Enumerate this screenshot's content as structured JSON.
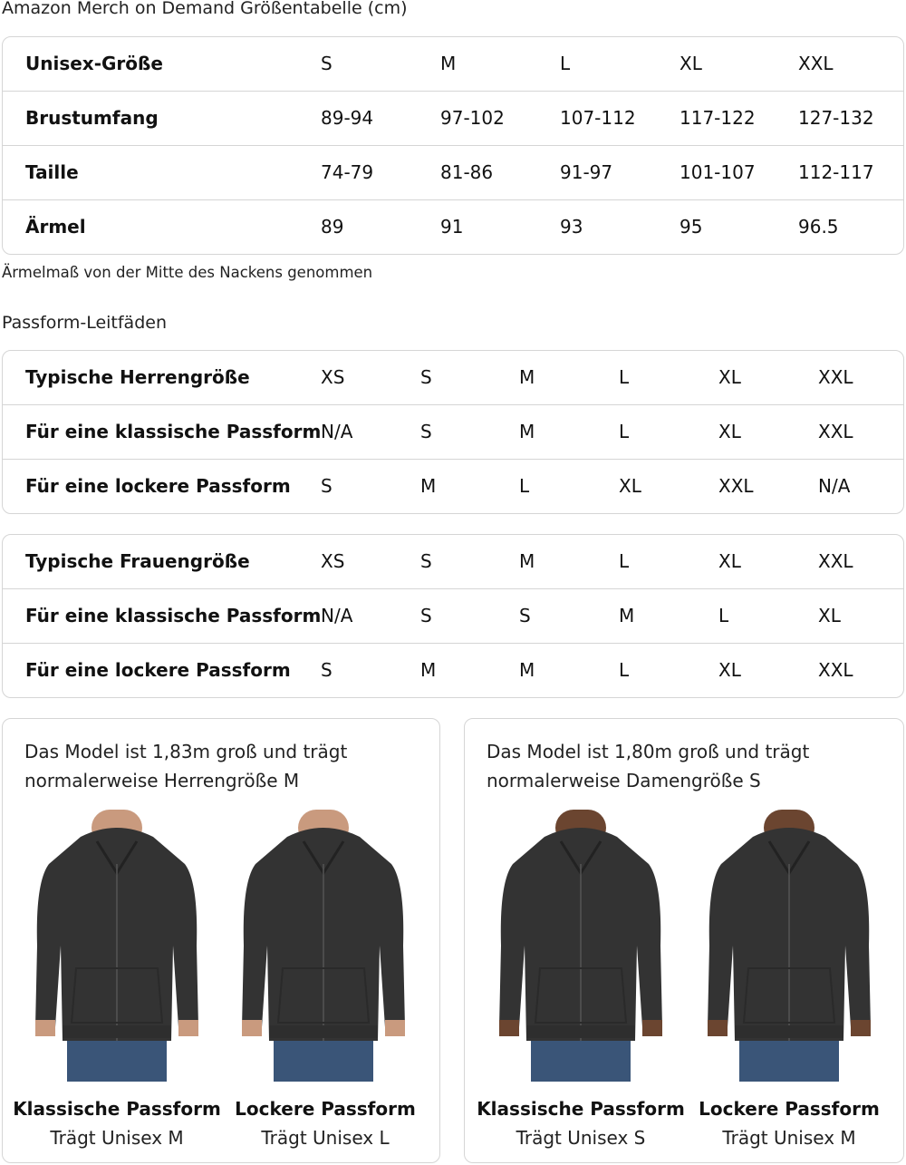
{
  "title": "Amazon Merch on Demand Größentabelle (cm)",
  "unisex_table": {
    "rows": [
      {
        "label": "Unisex-Größe",
        "values": [
          "S",
          "M",
          "L",
          "XL",
          "XXL"
        ]
      },
      {
        "label": "Brustumfang",
        "values": [
          "89-94",
          "97-102",
          "107-112",
          "117-122",
          "127-132"
        ]
      },
      {
        "label": "Taille",
        "values": [
          "74-79",
          "81-86",
          "91-97",
          "101-107",
          "112-117"
        ]
      },
      {
        "label": "Ärmel",
        "values": [
          "89",
          "91",
          "93",
          "95",
          "96.5"
        ]
      }
    ]
  },
  "sleeve_note": "Ärmelmaß von der Mitte des Nackens genommen",
  "fit_guide_heading": "Passform-Leitfäden",
  "men_table": {
    "rows": [
      {
        "label": "Typische Herrengröße",
        "values": [
          "XS",
          "S",
          "M",
          "L",
          "XL",
          "XXL"
        ]
      },
      {
        "label": "Für eine klassische Passform",
        "values": [
          "N/A",
          "S",
          "M",
          "L",
          "XL",
          "XXL"
        ]
      },
      {
        "label": "Für eine lockere Passform",
        "values": [
          "S",
          "M",
          "L",
          "XL",
          "XXL",
          "N/A"
        ]
      }
    ]
  },
  "women_table": {
    "rows": [
      {
        "label": "Typische Frauengröße",
        "values": [
          "XS",
          "S",
          "M",
          "L",
          "XL",
          "XXL"
        ]
      },
      {
        "label": "Für eine klassische Passform",
        "values": [
          "N/A",
          "S",
          "S",
          "M",
          "L",
          "XL"
        ]
      },
      {
        "label": "Für eine lockere Passform",
        "values": [
          "S",
          "M",
          "M",
          "L",
          "XL",
          "XXL"
        ]
      }
    ]
  },
  "model_cards": [
    {
      "caption_line1": "Das Model ist 1,83m groß und trägt",
      "caption_line2": "normalerweise Herrengröße M",
      "fits": [
        {
          "title": "Klassische Passform",
          "subtitle": "Trägt Unisex M"
        },
        {
          "title": "Lockere Passform",
          "subtitle": "Trägt Unisex L"
        }
      ]
    },
    {
      "caption_line1": "Das Model ist 1,80m groß und trägt",
      "caption_line2": "normalerweise Damengröße S",
      "fits": [
        {
          "title": "Klassische Passform",
          "subtitle": "Trägt Unisex S"
        },
        {
          "title": "Lockere Passform",
          "subtitle": "Trägt Unisex M"
        }
      ]
    }
  ],
  "colors": {
    "border": "#d5d5d5",
    "hoodie": "#333333",
    "jeans": "#3a5578"
  }
}
